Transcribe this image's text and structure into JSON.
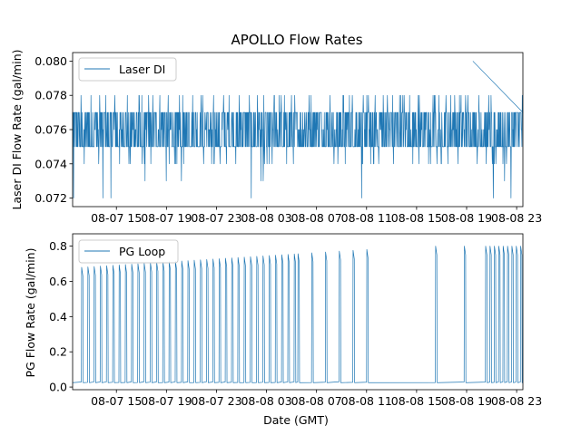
{
  "chart_data": [
    {
      "type": "line",
      "title": "APOLLO Flow Rates",
      "xlabel": "",
      "ylabel": "Laser DI Flow Rate (gal/min)",
      "x_tick_labels": [
        "08-07 15",
        "08-07 19",
        "08-07 23",
        "08-08 03",
        "08-08 07",
        "08-08 11",
        "08-08 15",
        "08-08 19",
        "08-08 23"
      ],
      "x_range_hours": [
        11.5,
        47.5
      ],
      "ylim": [
        0.0715,
        0.0805
      ],
      "y_ticks": [
        0.072,
        0.074,
        0.076,
        0.078,
        0.08
      ],
      "y_tick_labels": [
        "0.072",
        "0.074",
        "0.076",
        "0.078",
        "0.080"
      ],
      "legend": "upper-left",
      "series": [
        {
          "name": "Laser DI",
          "color": "#1f77b4",
          "time_start_hours": 11.5,
          "time_end_hours": 47.5,
          "typical_min": 0.075,
          "typical_max": 0.077,
          "occasional_min": 0.074,
          "occasional_max": 0.078,
          "overall_min": 0.072,
          "overall_max": 0.08
        }
      ]
    },
    {
      "type": "line",
      "title": "",
      "xlabel": "Date (GMT)",
      "ylabel": "PG Flow Rate (gal/min)",
      "x_tick_labels": [
        "08-07 15",
        "08-07 19",
        "08-07 23",
        "08-08 03",
        "08-08 07",
        "08-08 11",
        "08-08 15",
        "08-08 19",
        "08-08 23"
      ],
      "x_range_hours": [
        11.5,
        47.5
      ],
      "ylim": [
        -0.015,
        0.87
      ],
      "y_ticks": [
        0.0,
        0.2,
        0.4,
        0.6,
        0.8
      ],
      "y_tick_labels": [
        "0.0",
        "0.2",
        "0.4",
        "0.6",
        "0.8"
      ],
      "legend": "upper-left",
      "series": [
        {
          "name": "PG Loop",
          "color": "#1f77b4",
          "baseline": 0.025,
          "pulse_peak_start": 0.68,
          "pulse_peak_end": 0.8,
          "pulse_intervals": [
            {
              "from_hours": 12.2,
              "to_hours": 29.5,
              "period_hours": 0.5
            },
            {
              "from_hours": 29.5,
              "to_hours": 35.0,
              "period_hours": 1.1
            },
            {
              "from_hours": 40.5,
              "to_hours": 41.0,
              "period_hours": 1.0
            },
            {
              "from_hours": 42.8,
              "to_hours": 43.2,
              "period_hours": 1.0
            },
            {
              "from_hours": 44.5,
              "to_hours": 47.4,
              "period_hours": 0.35
            }
          ]
        }
      ]
    }
  ]
}
